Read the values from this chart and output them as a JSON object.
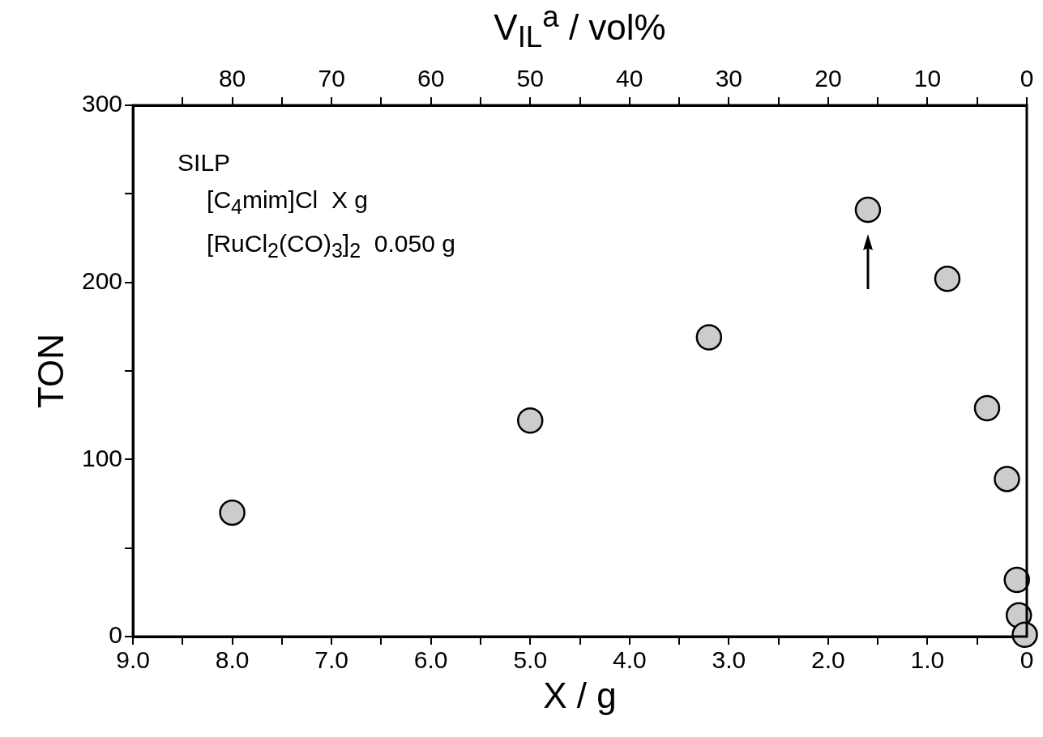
{
  "chart_data": {
    "type": "scatter",
    "xlabel": "X / g",
    "ylabel": "TON",
    "x2label": "V$_{IL}$$^{a}$ / vol%",
    "x": [
      8.0,
      5.0,
      3.2,
      1.6,
      0.8,
      0.4,
      0.2,
      0.1,
      0.08,
      0.02
    ],
    "series": [
      {
        "color": "#cccccc",
        "values": [
          70,
          122,
          169,
          241,
          202,
          129,
          89,
          32,
          12,
          1
        ]
      }
    ],
    "xlim": [
      9,
      0
    ],
    "xticks": [
      {
        "value": 9,
        "label": "9.0"
      },
      {
        "value": 8.5,
        "label": null
      },
      {
        "value": 8,
        "label": "8.0"
      },
      {
        "value": 7.5,
        "label": null
      },
      {
        "value": 7,
        "label": "7.0"
      },
      {
        "value": 6.5,
        "label": null
      },
      {
        "value": 6,
        "label": "6.0"
      },
      {
        "value": 5.5,
        "label": null
      },
      {
        "value": 5,
        "label": "5.0"
      },
      {
        "value": 4.5,
        "label": null
      },
      {
        "value": 4,
        "label": "4.0"
      },
      {
        "value": 3.5,
        "label": null
      },
      {
        "value": 3,
        "label": "3.0"
      },
      {
        "value": 2.5,
        "label": null
      },
      {
        "value": 2,
        "label": "2.0"
      },
      {
        "value": 1.5,
        "label": null
      },
      {
        "value": 1,
        "label": "1.0"
      },
      {
        "value": 0.5,
        "label": null
      },
      0
    ],
    "x2lim": [
      90,
      0
    ],
    "x2ticks": [
      {
        "value": 85,
        "label": null
      },
      80,
      {
        "value": 75,
        "label": null
      },
      70,
      {
        "value": 65,
        "label": null
      },
      60,
      {
        "value": 55,
        "label": null
      },
      50,
      {
        "value": 45,
        "label": null
      },
      40,
      {
        "value": 35,
        "label": null
      },
      30,
      {
        "value": 25,
        "label": null
      },
      20,
      {
        "value": 15,
        "label": null
      },
      10,
      {
        "value": 5,
        "label": null
      },
      0
    ],
    "ylim": [
      0,
      300
    ],
    "yticks": [
      0,
      {
        "value": 50,
        "label": null
      },
      100,
      {
        "value": 150,
        "label": null
      },
      200,
      {
        "value": 250,
        "label": null
      },
      300
    ],
    "annotations": [
      "SILP",
      "[C$_{4}$mim]Cl  X g",
      "[RuCl$_{2}$(CO)$_{3}$]$_{2}$  0.050 g"
    ],
    "grid": false,
    "legend": false,
    "marker": "circle"
  }
}
